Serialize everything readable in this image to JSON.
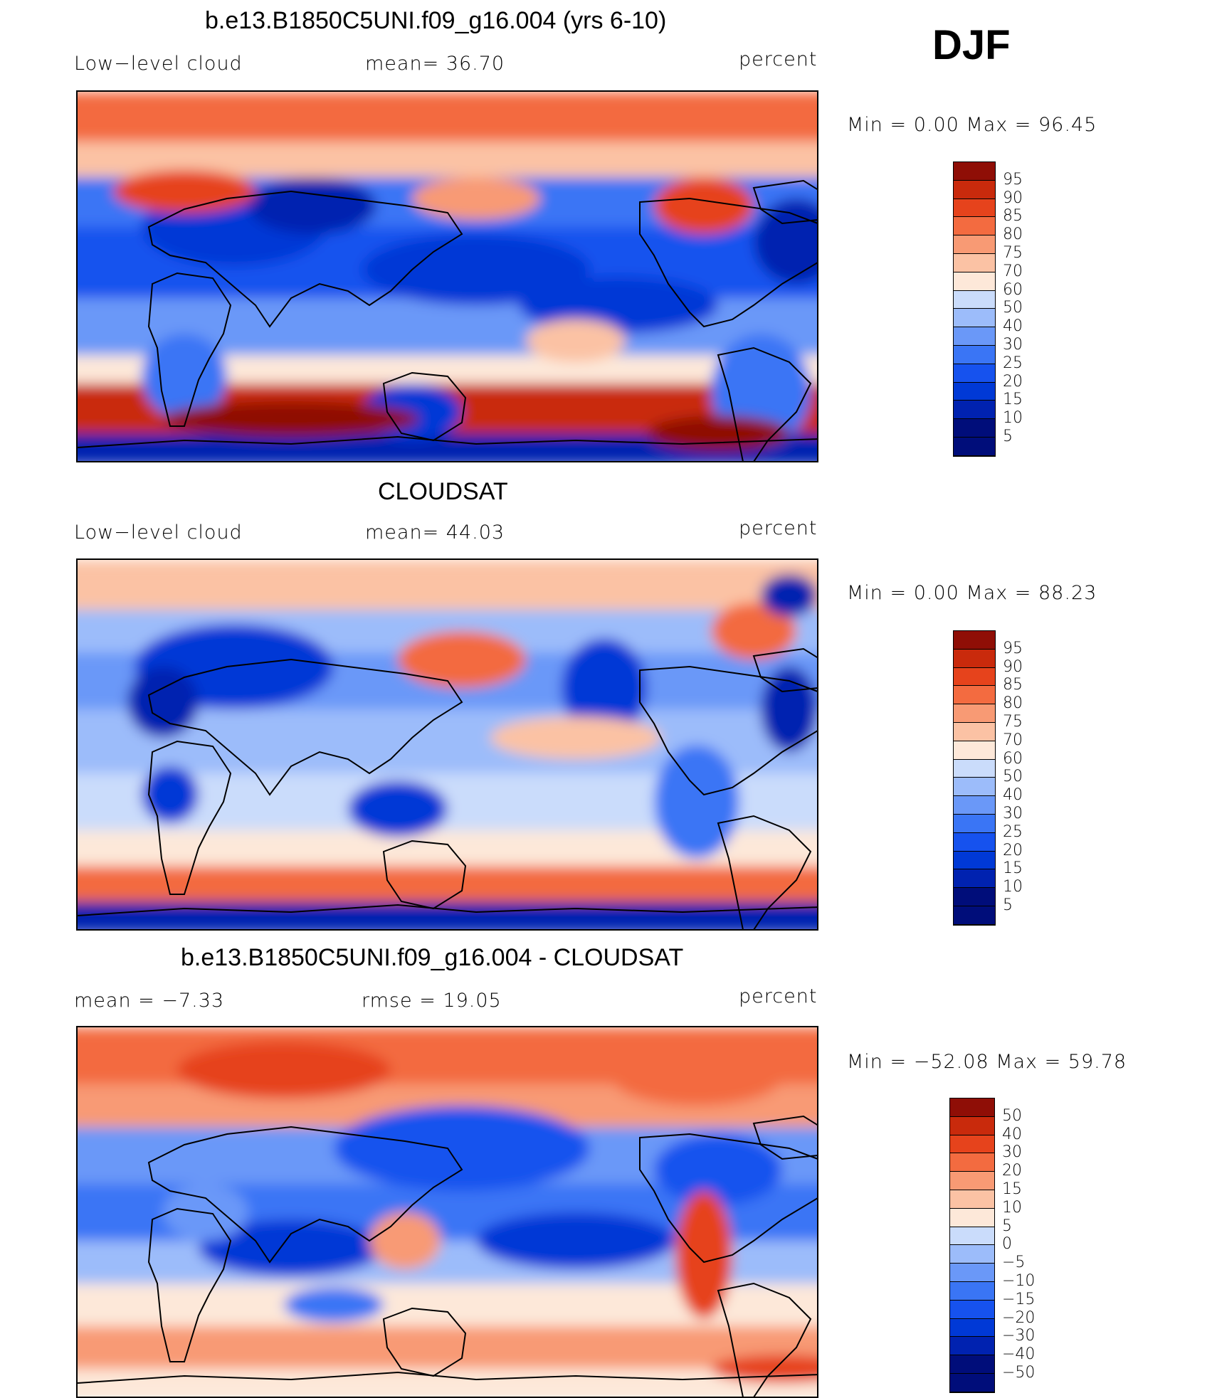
{
  "season": "DJF",
  "colors": {
    "abs_scale": [
      "#000d7a",
      "#0022b0",
      "#0039d6",
      "#1652ee",
      "#3a75f5",
      "#6a98f8",
      "#9cbcfa",
      "#cadcfb",
      "#fde8d9",
      "#fbc2a4",
      "#f89a74",
      "#f36b40",
      "#e6431c",
      "#c92a0c",
      "#8f0e06"
    ],
    "diff_scale": [
      "#000d7a",
      "#0022b0",
      "#0039d6",
      "#1652ee",
      "#3a75f5",
      "#6a98f8",
      "#9cbcfa",
      "#cadcfb",
      "#fde8d9",
      "#fbc2a4",
      "#f89a74",
      "#f36b40",
      "#e6431c",
      "#c92a0c",
      "#8f0e06"
    ]
  },
  "panels": [
    {
      "title": "b.e13.B1850C5UNI.f09_g16.004 (yrs 6-10)",
      "left_label": "Low−level cloud",
      "center_label": "mean=   36.70",
      "units": "percent",
      "minmax": "Min  =      0.00  Max  =    96.45",
      "colorbar_labels": [
        "95",
        "90",
        "85",
        "80",
        "75",
        "70",
        "60",
        "50",
        "40",
        "30",
        "25",
        "20",
        "15",
        "10",
        "5"
      ]
    },
    {
      "title": "CLOUDSAT",
      "left_label": "Low−level cloud",
      "center_label": "mean=   44.03",
      "units": "percent",
      "minmax": "Min  =      0.00  Max  =    88.23",
      "colorbar_labels": [
        "95",
        "90",
        "85",
        "80",
        "75",
        "70",
        "60",
        "50",
        "40",
        "30",
        "25",
        "20",
        "15",
        "10",
        "5"
      ]
    },
    {
      "title": "b.e13.B1850C5UNI.f09_g16.004 - CLOUDSAT",
      "left_label": "mean  =    −7.33",
      "center_label": "rmse  =    19.05",
      "units": "percent",
      "minmax": "Min  =  −52.08  Max  =    59.78",
      "colorbar_labels": [
        "50",
        "40",
        "30",
        "20",
        "15",
        "10",
        "5",
        "0",
        "−5",
        "−10",
        "−15",
        "−20",
        "−30",
        "−40",
        "−50"
      ]
    }
  ]
}
